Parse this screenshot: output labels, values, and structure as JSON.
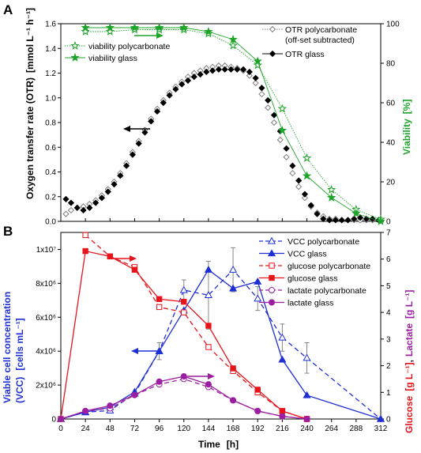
{
  "figure": {
    "panels": [
      {
        "id": "A",
        "label": "A",
        "left_axis": {
          "label": "Oxygen transfer rate (OTR)",
          "unit": "[mmol L⁻¹ h⁻¹]",
          "range": [
            0,
            1.6
          ],
          "ticks": [
            "0.0",
            "0.2",
            "0.4",
            "0.6",
            "0.8",
            "1.0",
            "1.2",
            "1.4",
            "1.6"
          ]
        },
        "right_axis": {
          "label": "Viability",
          "unit": "[%]",
          "range": [
            0,
            100
          ],
          "ticks": [
            "0",
            "20",
            "40",
            "60",
            "80",
            "100"
          ]
        },
        "legend_left": [
          "viability polycarbonate",
          "viability glass"
        ],
        "legend_right": [
          "OTR polycarbonate",
          "(off-set subtracted)",
          "OTR glass"
        ]
      },
      {
        "id": "B",
        "label": "B",
        "left_axis": {
          "label": "Viable cell concentration",
          "label2": "(VCC)",
          "unit": "[cells mL⁻¹]",
          "range": [
            0,
            11000000
          ],
          "ticks": [
            "0",
            "2x10⁶",
            "4x10⁶",
            "6x10⁶",
            "8x10⁶",
            "1x10⁷"
          ]
        },
        "right_axis": {
          "label_glucose": "Glucose",
          "unit_glucose": "[g L⁻¹]",
          "comma": ",",
          "label_lactate": "Lactate",
          "unit_lactate": "[g L⁻¹]",
          "range": [
            0,
            7
          ],
          "ticks": [
            "0",
            "1",
            "2",
            "3",
            "4",
            "5",
            "6",
            "7"
          ]
        },
        "x_axis": {
          "label": "Time",
          "unit": "[h]",
          "range": [
            0,
            312
          ],
          "ticks": [
            "0",
            "24",
            "48",
            "72",
            "96",
            "120",
            "144",
            "168",
            "192",
            "216",
            "240",
            "264",
            "288",
            "312"
          ]
        },
        "legend": [
          "VCC polycarbonate",
          "VCC glass",
          "glucose polycarbonate",
          "glucose glass",
          "lactate polycarbonate",
          "lactate glass"
        ]
      }
    ]
  },
  "colors": {
    "blue": "#1f2fd6",
    "red": "#e8141c",
    "purple": "#9b1fa0",
    "green": "#1fa42a",
    "otr_glass": "#000000",
    "otr_poly": "#808080"
  },
  "chart_data": [
    {
      "type": "scatter",
      "panel": "A",
      "x_unit": "h",
      "xlim": [
        0,
        312
      ],
      "ylim_left": [
        0,
        1.6
      ],
      "ylim_right": [
        0,
        100
      ],
      "series": [
        {
          "name": "OTR polycarbonate",
          "axis": "left",
          "marker": "open-diamond",
          "x": [
            5,
            10,
            16,
            22,
            28,
            34,
            40,
            46,
            52,
            58,
            64,
            70,
            76,
            82,
            88,
            94,
            100,
            106,
            112,
            118,
            124,
            130,
            136,
            142,
            148,
            154,
            160,
            166,
            172,
            178,
            184,
            190,
            196,
            202,
            208,
            214,
            220,
            226,
            232,
            238,
            244,
            250,
            256,
            262,
            268,
            274,
            280,
            286,
            292,
            298,
            304,
            310
          ],
          "y": [
            0.06,
            0.09,
            0.11,
            0.12,
            0.14,
            0.17,
            0.21,
            0.26,
            0.32,
            0.39,
            0.47,
            0.56,
            0.65,
            0.74,
            0.83,
            0.91,
            0.98,
            1.04,
            1.09,
            1.13,
            1.17,
            1.2,
            1.22,
            1.24,
            1.25,
            1.26,
            1.26,
            1.25,
            1.24,
            1.22,
            1.18,
            1.12,
            1.03,
            0.92,
            0.8,
            0.66,
            0.52,
            0.39,
            0.28,
            0.19,
            0.12,
            0.07,
            0.04,
            0.02,
            0.02,
            0.01,
            0.01,
            0.01,
            0.01,
            0.01,
            0.01,
            0.01
          ]
        },
        {
          "name": "OTR glass",
          "axis": "left",
          "marker": "filled-diamond",
          "x": [
            5,
            10,
            16,
            22,
            28,
            34,
            40,
            46,
            52,
            58,
            64,
            70,
            76,
            82,
            88,
            94,
            100,
            106,
            112,
            118,
            124,
            130,
            136,
            142,
            148,
            154,
            160,
            166,
            172,
            178,
            184,
            190,
            196,
            202,
            208,
            214,
            220,
            226,
            232,
            238,
            244,
            250,
            256,
            262,
            268,
            274,
            280,
            286,
            292,
            298,
            304,
            310
          ],
          "y": [
            0.18,
            0.15,
            0.11,
            0.09,
            0.11,
            0.15,
            0.19,
            0.24,
            0.3,
            0.37,
            0.45,
            0.54,
            0.63,
            0.72,
            0.81,
            0.89,
            0.96,
            1.02,
            1.07,
            1.11,
            1.14,
            1.17,
            1.19,
            1.21,
            1.22,
            1.23,
            1.23,
            1.23,
            1.23,
            1.23,
            1.21,
            1.16,
            1.08,
            0.98,
            0.86,
            0.73,
            0.59,
            0.45,
            0.33,
            0.22,
            0.13,
            0.06,
            0.02,
            0.01,
            0.01,
            0.01,
            0.01,
            0.02,
            0.03,
            0.02,
            0.02,
            0.01
          ]
        },
        {
          "name": "viability polycarbonate",
          "axis": "right",
          "marker": "open-star",
          "x": [
            24,
            48,
            72,
            96,
            120,
            144,
            168,
            192,
            216,
            240,
            264,
            288,
            312
          ],
          "y": [
            96,
            96,
            97,
            97,
            97,
            95,
            89,
            79,
            57,
            32,
            16,
            6,
            1
          ]
        },
        {
          "name": "viability glass",
          "axis": "right",
          "marker": "filled-star",
          "x": [
            24,
            48,
            72,
            96,
            120,
            144,
            168,
            192,
            216,
            240,
            264,
            288,
            312
          ],
          "y": [
            98,
            98,
            98,
            98,
            98,
            96,
            92,
            81,
            46,
            23,
            12,
            4,
            0
          ]
        }
      ]
    },
    {
      "type": "line",
      "panel": "B",
      "x_unit": "h",
      "xlim": [
        0,
        312
      ],
      "ylim_left": [
        0,
        11000000
      ],
      "ylim_right": [
        0,
        7
      ],
      "series": [
        {
          "name": "VCC polycarbonate",
          "axis": "left",
          "marker": "open-triangle",
          "dashed": true,
          "x": [
            0,
            24,
            48,
            72,
            96,
            120,
            144,
            168,
            192,
            216,
            240,
            312
          ],
          "y": [
            0,
            400000,
            500000,
            1500000,
            4000000,
            7600000,
            7300000,
            8800000,
            7100000,
            4800000,
            3600000,
            0
          ],
          "error": [
            0,
            0,
            0,
            0,
            500000,
            600000,
            2000000,
            1300000,
            700000,
            800000,
            900000,
            0
          ]
        },
        {
          "name": "VCC glass",
          "axis": "left",
          "marker": "filled-triangle",
          "dashed": false,
          "x": [
            0,
            24,
            48,
            72,
            96,
            120,
            144,
            168,
            192,
            216,
            240,
            312
          ],
          "y": [
            0,
            400000,
            700000,
            1600000,
            4000000,
            6400000,
            8800000,
            7700000,
            8100000,
            3500000,
            1400000,
            0
          ],
          "error": [
            0,
            0,
            0,
            0,
            0,
            0,
            0,
            0,
            0,
            0,
            0,
            0
          ]
        },
        {
          "name": "glucose polycarbonate",
          "axis": "right",
          "marker": "open-square",
          "dashed": true,
          "x": [
            24,
            48,
            72,
            96,
            120,
            144,
            168,
            192,
            216,
            240
          ],
          "y": [
            6.9,
            6.1,
            5.7,
            4.2,
            4.0,
            2.7,
            1.8,
            1.0,
            0.3,
            0.0
          ]
        },
        {
          "name": "glucose glass",
          "axis": "right",
          "marker": "filled-square",
          "dashed": false,
          "x": [
            0,
            24,
            48,
            72,
            96,
            120,
            144,
            168,
            192,
            216,
            240
          ],
          "y": [
            0,
            6.3,
            6.1,
            5.6,
            4.5,
            4.4,
            3.5,
            1.9,
            1.1,
            0.3,
            0.0
          ]
        },
        {
          "name": "lactate polycarbonate",
          "axis": "right",
          "marker": "open-circle",
          "dashed": true,
          "x": [
            0,
            24,
            48,
            72,
            96,
            120,
            144,
            168,
            192,
            216,
            240
          ],
          "y": [
            0,
            0.3,
            0.4,
            0.9,
            1.3,
            1.5,
            1.2,
            0.7,
            0.3,
            0.1,
            0.0
          ]
        },
        {
          "name": "lactate glass",
          "axis": "right",
          "marker": "filled-circle",
          "dashed": false,
          "x": [
            0,
            24,
            48,
            72,
            96,
            120,
            144,
            168,
            192,
            216,
            240
          ],
          "y": [
            0,
            0.3,
            0.5,
            0.9,
            1.4,
            1.6,
            1.3,
            0.7,
            0.3,
            0.1,
            0.0
          ]
        }
      ]
    }
  ]
}
